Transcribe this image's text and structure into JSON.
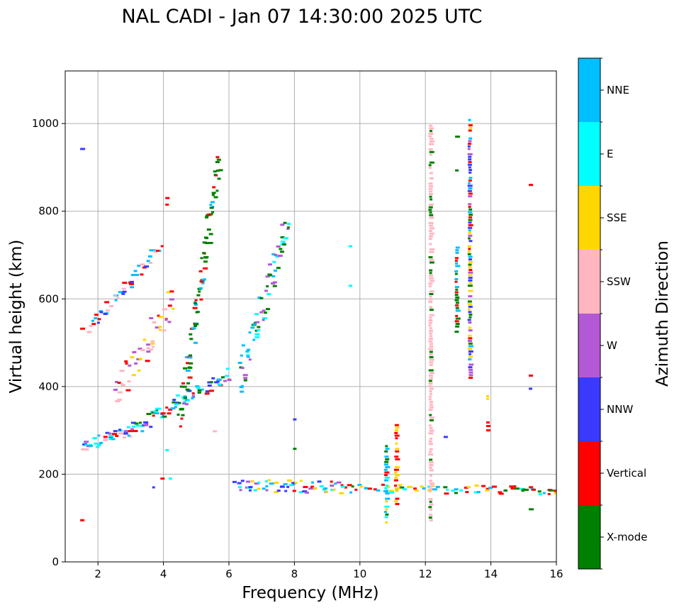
{
  "chart_data": {
    "type": "scatter",
    "title": "NAL CADI - Jan 07 14:30:00 2025 UTC",
    "xlabel": "Frequency (MHz)",
    "ylabel": "Virtual height (km)",
    "xlim": [
      1,
      16
    ],
    "ylim": [
      0,
      1120
    ],
    "xticks": [
      2,
      4,
      6,
      8,
      10,
      12,
      14,
      16
    ],
    "yticks": [
      0,
      200,
      400,
      600,
      800,
      1000
    ],
    "grid": true,
    "colorbar": {
      "title": "Azimuth Direction",
      "categories": [
        {
          "name": "X-mode",
          "color": "#008000"
        },
        {
          "name": "Vertical",
          "color": "#ff0000"
        },
        {
          "name": "NNW",
          "color": "#3a3aff"
        },
        {
          "name": "W",
          "color": "#b459d6"
        },
        {
          "name": "SSW",
          "color": "#ffb6c1"
        },
        {
          "name": "SSE",
          "color": "#ffd700"
        },
        {
          "name": "E",
          "color": "#00ffff"
        },
        {
          "name": "NNE",
          "color": "#00bfff"
        }
      ]
    },
    "echo_traces": [
      {
        "name": "low-F-trace",
        "x0": 1.5,
        "x1": 3.0,
        "y0": 262,
        "y1": 300,
        "n": 40,
        "spread": 14,
        "dir": [
          "Vertical",
          "NNW",
          "NNE",
          "SSW",
          "E",
          "W"
        ]
      },
      {
        "name": "F-ordinary-trace",
        "x0": 3.0,
        "x1": 6.0,
        "y0": 300,
        "y1": 430,
        "n": 80,
        "spread": 16,
        "dir": [
          "NNE",
          "X-mode",
          "NNW",
          "Vertical",
          "E",
          "W"
        ]
      },
      {
        "name": "F-x-mode-trace",
        "x0": 4.5,
        "x1": 5.7,
        "y0": 330,
        "y1": 920,
        "n": 90,
        "spread": 30,
        "dir": [
          "X-mode",
          "X-mode",
          "X-mode",
          "NNE",
          "Vertical"
        ]
      },
      {
        "name": "F2-echo-trace",
        "x0": 1.7,
        "x1": 3.9,
        "y0": 530,
        "y1": 720,
        "n": 45,
        "spread": 14,
        "dir": [
          "Vertical",
          "NNW",
          "NNE",
          "SSW"
        ]
      },
      {
        "name": "spread-F-trace",
        "x0": 2.5,
        "x1": 4.3,
        "y0": 380,
        "y1": 600,
        "n": 50,
        "spread": 40,
        "dir": [
          "SSW",
          "SSE",
          "Vertical",
          "W"
        ]
      },
      {
        "name": "high-band-trace",
        "x0": 6.3,
        "x1": 7.8,
        "y0": 410,
        "y1": 780,
        "n": 70,
        "spread": 40,
        "dir": [
          "NNE",
          "E",
          "X-mode",
          "W"
        ]
      },
      {
        "name": "E-layer-trace",
        "x0": 6.2,
        "x1": 9.5,
        "y0": 175,
        "y1": 170,
        "n": 60,
        "spread": 14,
        "dir": [
          "W",
          "NNW",
          "Vertical",
          "NNE",
          "SSE",
          "E"
        ]
      },
      {
        "name": "Es-layer-trace",
        "x0": 9.5,
        "x1": 16.0,
        "y0": 168,
        "y1": 162,
        "n": 70,
        "spread": 10,
        "dir": [
          "Vertical",
          "NNE",
          "E",
          "X-mode",
          "SSE"
        ]
      }
    ],
    "vertical_bands": [
      {
        "x": 10.8,
        "y0": 90,
        "y1": 265,
        "dir": [
          "Vertical",
          "E",
          "SSE",
          "NNE",
          "X-mode"
        ]
      },
      {
        "x": 11.1,
        "y0": 120,
        "y1": 315,
        "dir": [
          "SSE",
          "Vertical"
        ]
      },
      {
        "x": 12.15,
        "y0": 95,
        "y1": 1005,
        "dir": [
          "SSW",
          "SSW",
          "SSW",
          "X-mode"
        ]
      },
      {
        "x": 13.35,
        "y0": 420,
        "y1": 1010,
        "dir": [
          "NNW",
          "W",
          "X-mode",
          "SSE",
          "NNE",
          "Vertical"
        ]
      },
      {
        "x": 12.95,
        "y0": 525,
        "y1": 720,
        "dir": [
          "X-mode",
          "NNE",
          "Vertical"
        ]
      }
    ],
    "isolated_echoes": [
      {
        "x": 1.5,
        "y": 942,
        "dir": "NNW"
      },
      {
        "x": 1.5,
        "y": 95,
        "dir": "Vertical"
      },
      {
        "x": 1.5,
        "y": 532,
        "dir": "Vertical"
      },
      {
        "x": 4.1,
        "y": 830,
        "dir": "Vertical"
      },
      {
        "x": 4.1,
        "y": 815,
        "dir": "Vertical"
      },
      {
        "x": 9.7,
        "y": 720,
        "dir": "E"
      },
      {
        "x": 9.7,
        "y": 630,
        "dir": "E"
      },
      {
        "x": 8.0,
        "y": 325,
        "dir": "NNW"
      },
      {
        "x": 8.0,
        "y": 258,
        "dir": "X-mode"
      },
      {
        "x": 3.7,
        "y": 170,
        "dir": "NNW"
      },
      {
        "x": 3.95,
        "y": 190,
        "dir": "Vertical"
      },
      {
        "x": 4.1,
        "y": 255,
        "dir": "E"
      },
      {
        "x": 4.2,
        "y": 190,
        "dir": "E"
      },
      {
        "x": 5.55,
        "y": 298,
        "dir": "SSW"
      },
      {
        "x": 12.6,
        "y": 285,
        "dir": "NNW"
      },
      {
        "x": 12.95,
        "y": 970,
        "dir": "X-mode"
      },
      {
        "x": 12.95,
        "y": 893,
        "dir": "X-mode"
      },
      {
        "x": 13.9,
        "y": 378,
        "dir": "SSE"
      },
      {
        "x": 13.9,
        "y": 372,
        "dir": "SSE"
      },
      {
        "x": 13.9,
        "y": 318,
        "dir": "Vertical"
      },
      {
        "x": 13.9,
        "y": 310,
        "dir": "Vertical"
      },
      {
        "x": 13.9,
        "y": 300,
        "dir": "Vertical"
      },
      {
        "x": 15.2,
        "y": 860,
        "dir": "Vertical"
      },
      {
        "x": 15.2,
        "y": 425,
        "dir": "Vertical"
      },
      {
        "x": 15.2,
        "y": 395,
        "dir": "NNW"
      },
      {
        "x": 15.2,
        "y": 120,
        "dir": "X-mode"
      },
      {
        "x": 15.8,
        "y": 163,
        "dir": "X-mode"
      },
      {
        "x": 14.6,
        "y": 172,
        "dir": "Vertical"
      },
      {
        "x": 15.0,
        "y": 165,
        "dir": "X-mode"
      }
    ]
  }
}
